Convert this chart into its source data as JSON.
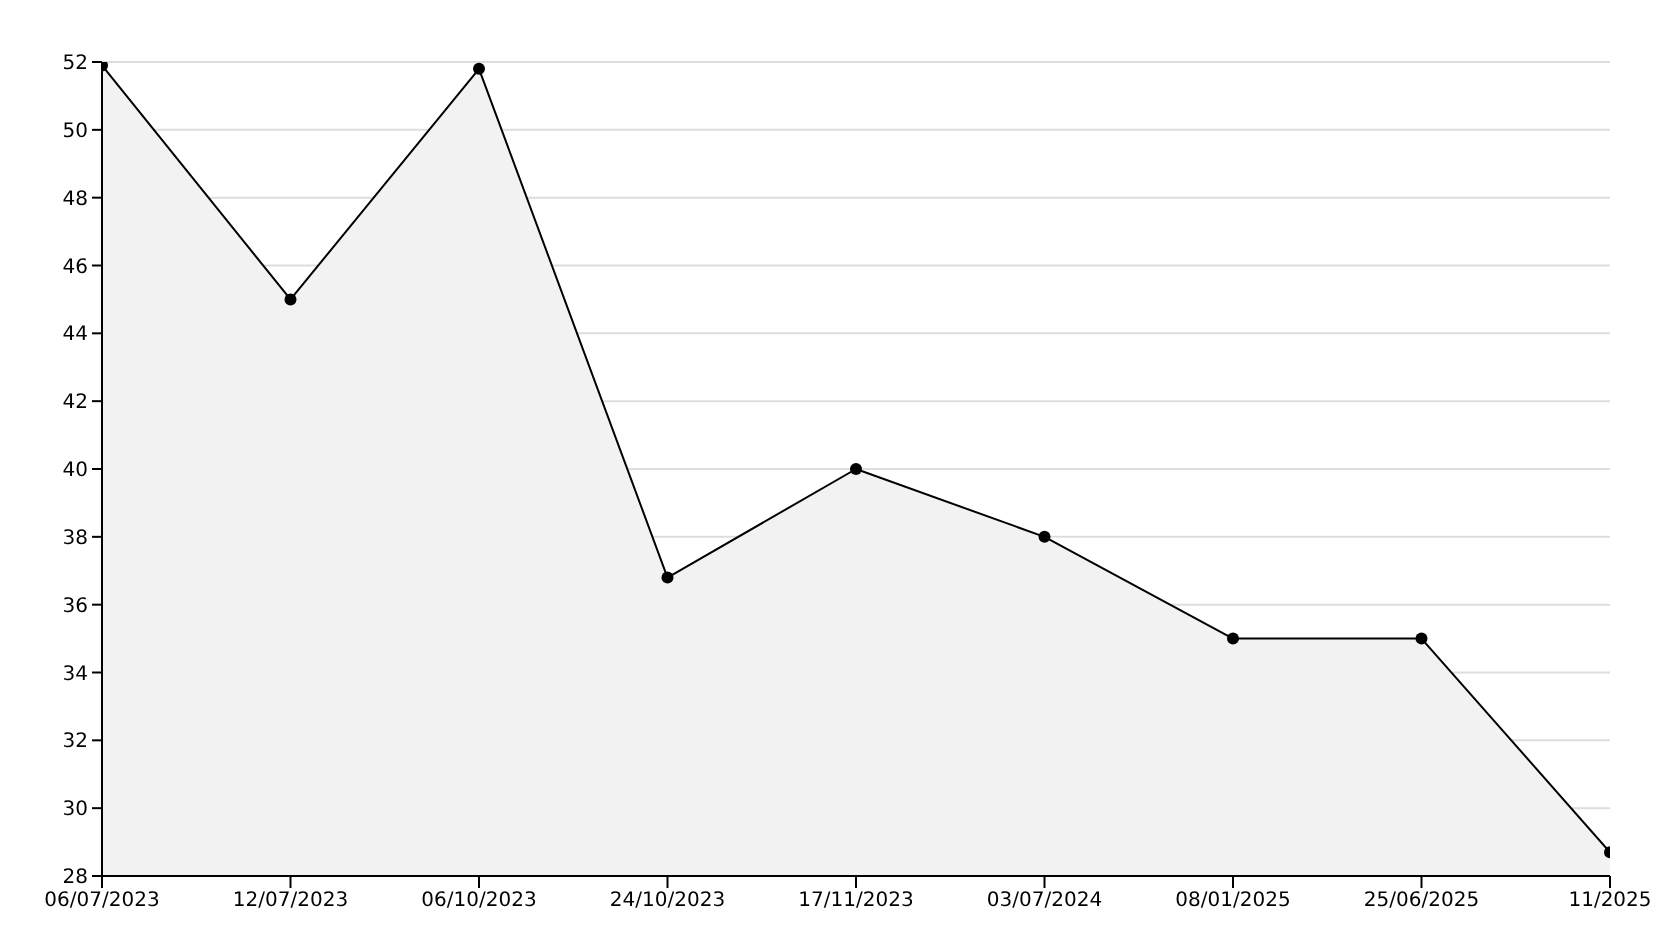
{
  "chart_data": {
    "type": "area",
    "categories": [
      "06/07/2023",
      "12/07/2023",
      "06/10/2023",
      "24/10/2023",
      "17/11/2023",
      "03/07/2024",
      "08/01/2025",
      "25/06/2025",
      "11/2025"
    ],
    "series": [
      {
        "color": "#000000",
        "values": [
          51.9,
          45,
          51.8,
          36.8,
          40,
          38,
          35,
          35,
          28.7
        ]
      }
    ],
    "ylim": [
      28,
      52
    ],
    "yticks": [
      28,
      30,
      32,
      34,
      36,
      38,
      40,
      42,
      44,
      46,
      48,
      50,
      52
    ],
    "grid": "y",
    "marker": "circle",
    "line_style": "solid"
  }
}
